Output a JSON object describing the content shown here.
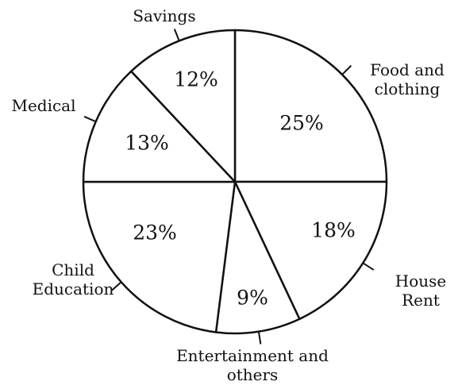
{
  "chart_data": {
    "type": "pie",
    "categories": [
      "Food and clothing",
      "House Rent",
      "Entertainment and others",
      "Child Education",
      "Medical",
      "Savings"
    ],
    "values": [
      25,
      18,
      9,
      23,
      13,
      12
    ],
    "value_labels": [
      "25%",
      "18%",
      "9%",
      "23%",
      "13%",
      "12%"
    ],
    "color": "#ffffff"
  }
}
